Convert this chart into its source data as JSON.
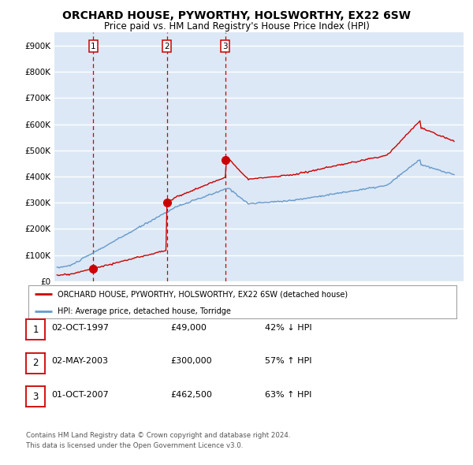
{
  "title": "ORCHARD HOUSE, PYWORTHY, HOLSWORTHY, EX22 6SW",
  "subtitle": "Price paid vs. HM Land Registry's House Price Index (HPI)",
  "title_fontsize": 10,
  "subtitle_fontsize": 8.5,
  "ylim": [
    0,
    950000
  ],
  "yticks": [
    0,
    100000,
    200000,
    300000,
    400000,
    500000,
    600000,
    700000,
    800000,
    900000
  ],
  "ytick_labels": [
    "£0",
    "£100K",
    "£200K",
    "£300K",
    "£400K",
    "£500K",
    "£600K",
    "£700K",
    "£800K",
    "£900K"
  ],
  "background_color": "#ffffff",
  "plot_bg_color": "#dce8f5",
  "grid_color": "#ffffff",
  "hpi_color": "#6699cc",
  "price_color": "#cc0000",
  "sale_marker_color": "#cc0000",
  "sale_year_floats": [
    1997.75,
    2003.33,
    2007.75
  ],
  "sale_prices": [
    49000,
    300000,
    462500
  ],
  "sale_labels": [
    "1",
    "2",
    "3"
  ],
  "vline_color": "#cc0000",
  "legend_label_price": "ORCHARD HOUSE, PYWORTHY, HOLSWORTHY, EX22 6SW (detached house)",
  "legend_label_hpi": "HPI: Average price, detached house, Torridge",
  "table_rows": [
    [
      "1",
      "02-OCT-1997",
      "£49,000",
      "42% ↓ HPI"
    ],
    [
      "2",
      "02-MAY-2003",
      "£300,000",
      "57% ↑ HPI"
    ],
    [
      "3",
      "01-OCT-2007",
      "£462,500",
      "63% ↑ HPI"
    ]
  ],
  "footnote": "Contains HM Land Registry data © Crown copyright and database right 2024.\nThis data is licensed under the Open Government Licence v3.0.",
  "xlim_start": 1994.8,
  "xlim_end": 2025.8
}
